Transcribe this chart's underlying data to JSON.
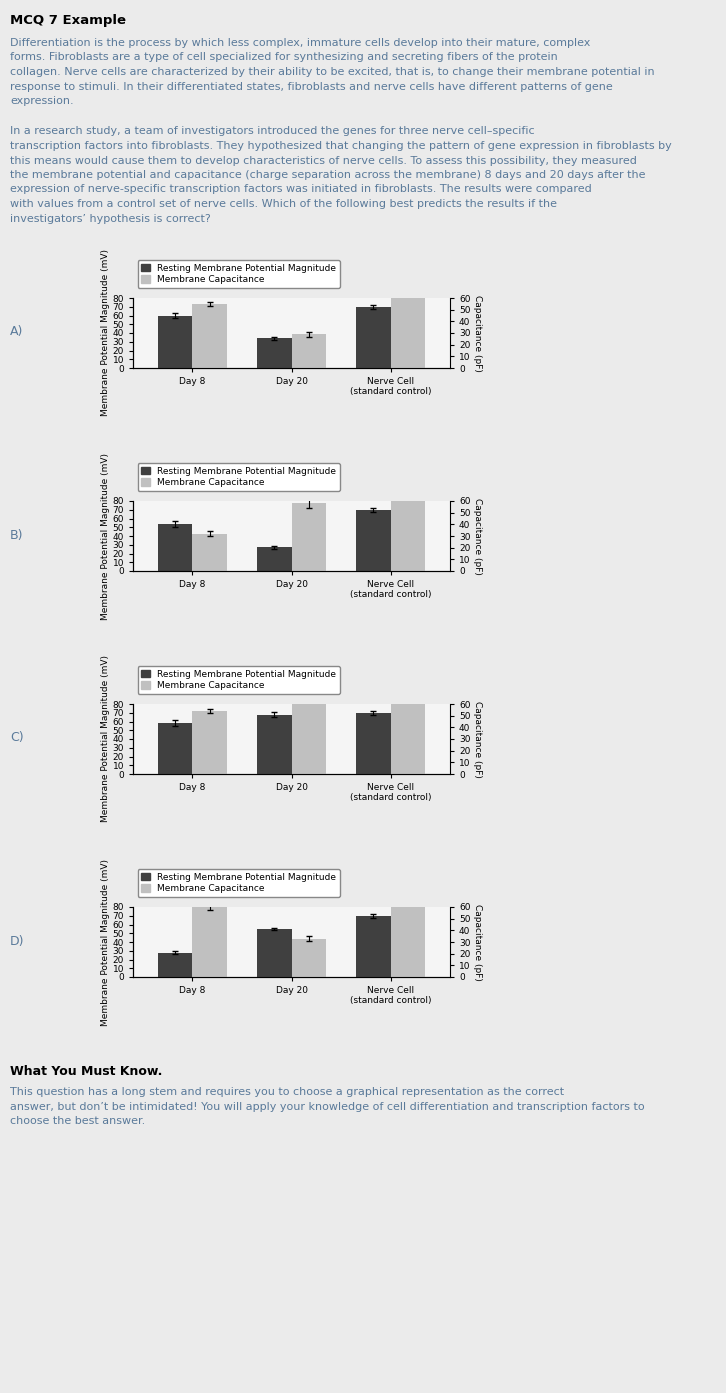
{
  "title": "MCQ 7 Example",
  "bg_color": "#ebebeb",
  "chart_bg": "#f5f5f5",
  "paragraph1_lines": [
    "Differentiation is the process by which less complex, immature cells develop into their mature, complex",
    "forms. Fibroblasts are a type of cell specialized for synthesizing and secreting fibers of the protein",
    "collagen. Nerve cells are characterized by their ability to be excited, that is, to change their membrane potential in",
    "response to stimuli. In their differentiated states, fibroblasts and nerve cells have different patterns of gene",
    "expression."
  ],
  "paragraph2_lines": [
    "In a research study, a team of investigators introduced the genes for three nerve cell–specific",
    "transcription factors into fibroblasts. They hypothesized that changing the pattern of gene expression in fibroblasts by",
    "this means would cause them to develop characteristics of nerve cells. To assess this possibility, they measured",
    "the membrane potential and capacitance (charge separation across the membrane) 8 days and 20 days after the",
    "expression of nerve-specific transcription factors was initiated in fibroblasts. The results were compared",
    "with values from a control set of nerve cells. Which of the following best predicts the results if the",
    "investigators’ hypothesis is correct?"
  ],
  "footer_title": "What You Must Know.",
  "footer_lines": [
    "This question has a long stem and requires you to choose a graphical representation as the correct",
    "answer, but don’t be intimidated! You will apply your knowledge of cell differentiation and transcription factors to",
    "choose the best answer."
  ],
  "charts": [
    {
      "label": "A)",
      "dark_values": [
        60,
        34,
        70
      ],
      "light_values": [
        55,
        29,
        65
      ],
      "dark_errors": [
        2.5,
        1.5,
        2.5
      ],
      "light_errors": [
        1.5,
        2.0,
        1.5
      ]
    },
    {
      "label": "B)",
      "dark_values": [
        54,
        27,
        70
      ],
      "light_values": [
        32,
        58,
        65
      ],
      "dark_errors": [
        3.5,
        1.5,
        2.5
      ],
      "light_errors": [
        2.0,
        4.0,
        1.5
      ]
    },
    {
      "label": "C)",
      "dark_values": [
        58,
        68,
        70
      ],
      "light_values": [
        54,
        65,
        65
      ],
      "dark_errors": [
        3.5,
        2.5,
        2.5
      ],
      "light_errors": [
        1.5,
        1.5,
        1.5
      ]
    },
    {
      "label": "D)",
      "dark_values": [
        28,
        55,
        70
      ],
      "light_values": [
        60,
        33,
        65
      ],
      "dark_errors": [
        1.5,
        1.5,
        2.5
      ],
      "light_errors": [
        2.5,
        2.0,
        1.5
      ]
    }
  ],
  "x_labels": [
    "Day 8",
    "Day 20",
    "Nerve Cell\n(standard control)"
  ],
  "ylabel_left": "Membrane Potential Magnitude (mV)",
  "ylabel_right": "Capacitance (pF)",
  "legend_dark": "Resting Membrane Potential Magnitude",
  "legend_light": "Membrane Capacitance",
  "dark_color": "#404040",
  "light_color": "#c0c0c0",
  "text_color_title": "#000000",
  "text_color_body": "#5a7a9a",
  "axis_label_color": "#000000"
}
